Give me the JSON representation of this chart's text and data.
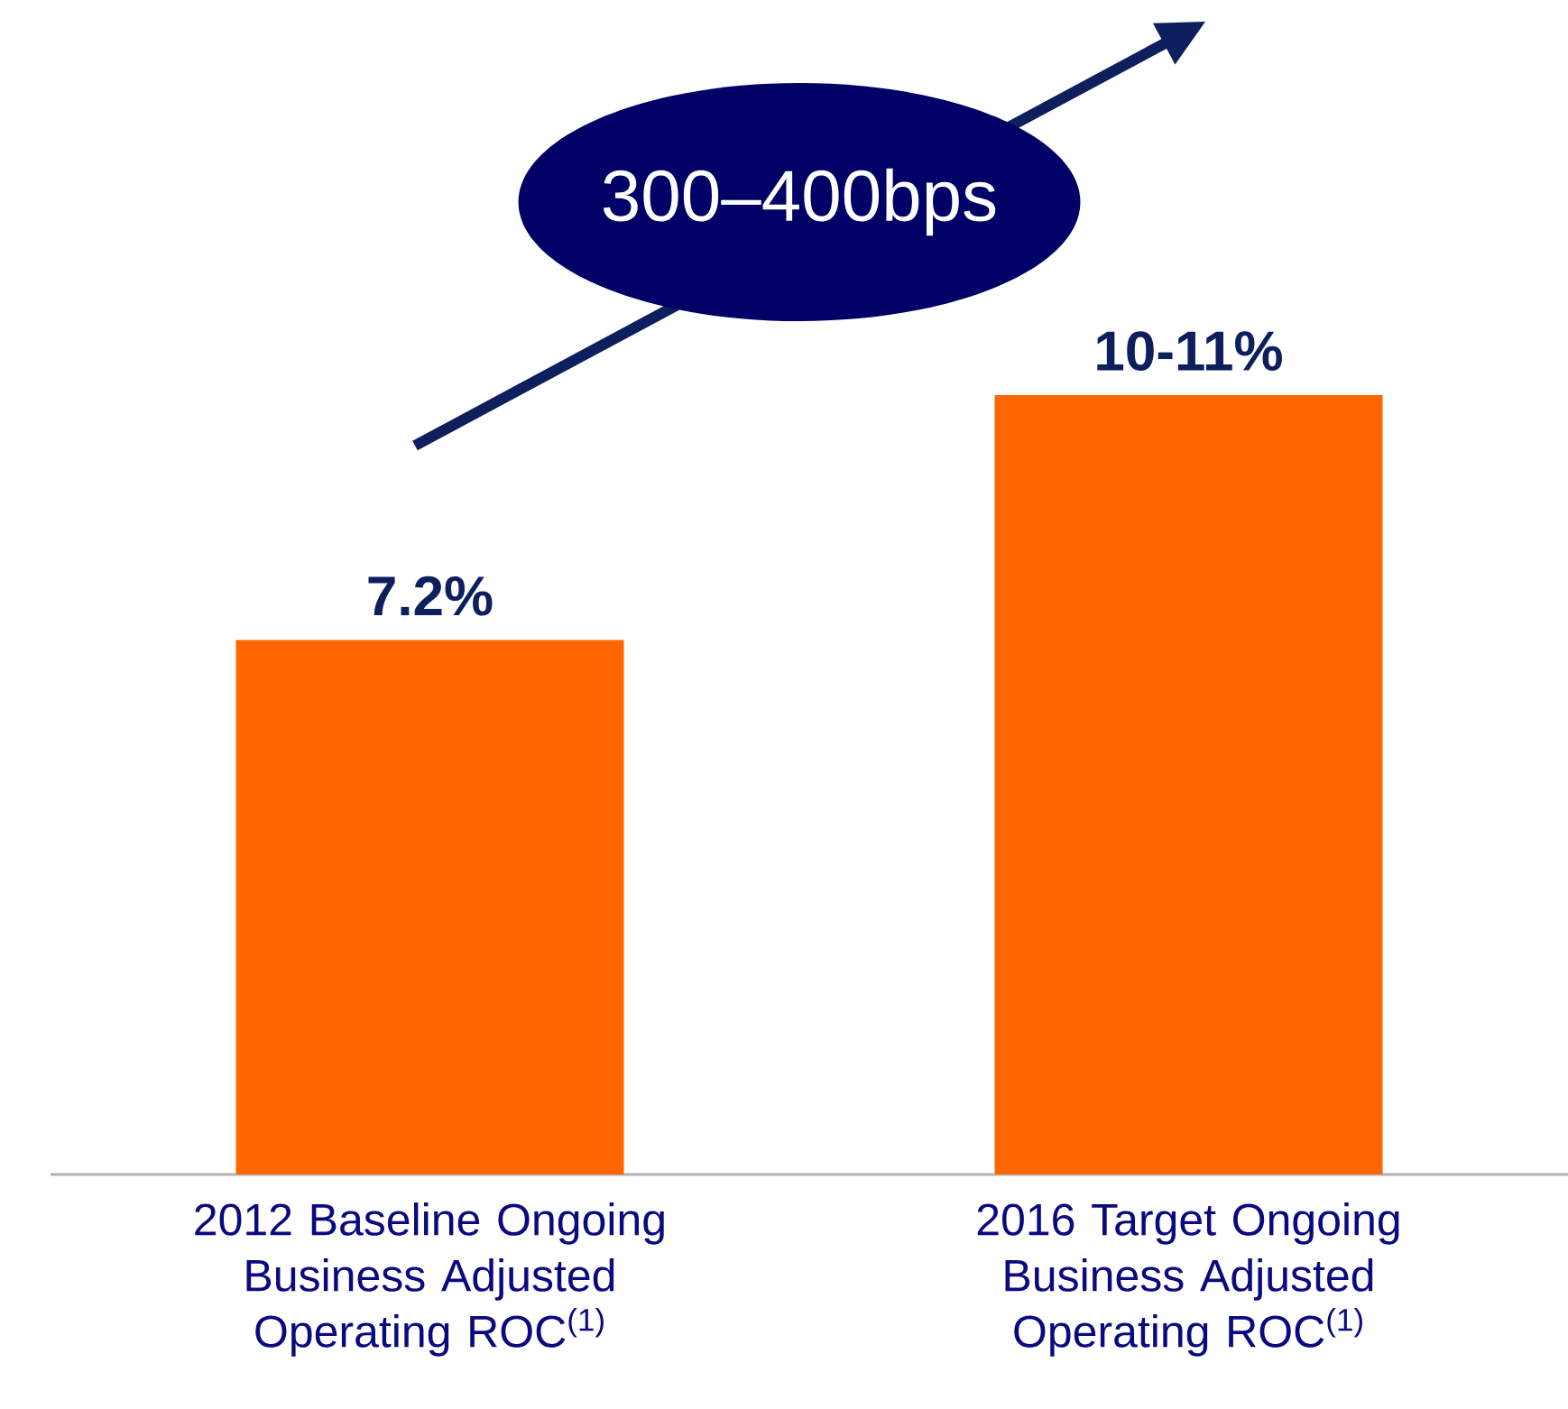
{
  "chart_data": {
    "type": "bar",
    "categories": [
      "2012 Baseline Ongoing Business Adjusted Operating ROC$^{(1)}$",
      "2016 Target Ongoing Business Adjusted Operating ROC$^{(1)}$"
    ],
    "values": [
      7.2,
      10.5
    ],
    "value_labels": [
      "7.2%",
      "10-11%"
    ],
    "color": "#ff6600",
    "annotations": [
      "300–400bps"
    ]
  }
}
